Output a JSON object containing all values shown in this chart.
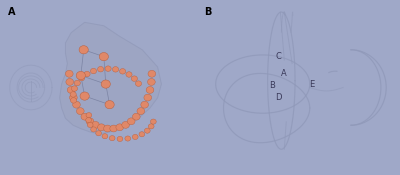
{
  "background_color": "#9fa8c8",
  "panel_A_label": "A",
  "panel_B_label": "B",
  "label_fontsize": 7,
  "label_color": "black",
  "canal_line_color": "#8f98b8",
  "point_color": "#e08868",
  "point_edge_color": "#b86040",
  "annotation_labels": [
    "C",
    "A",
    "B",
    "D",
    "E"
  ],
  "annotation_fontsize": 6,
  "bg": "#9fa8c8",
  "body_face": "#9ba3be",
  "body_edge": "#8890b0",
  "line_alpha": 0.75
}
